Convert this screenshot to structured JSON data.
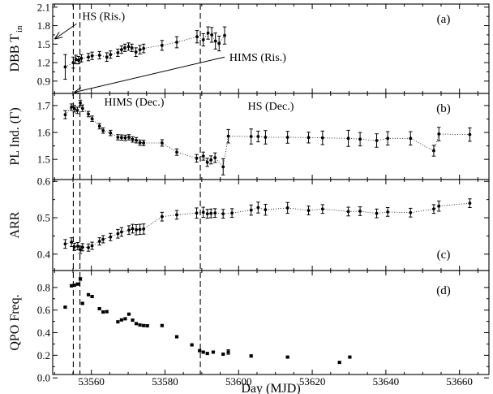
{
  "chart_data": {
    "type": "scatter",
    "xlabel": "Day (MJD)",
    "xlim": [
      53549.5,
      53668
    ],
    "xticks": [
      53560,
      53580,
      53600,
      53620,
      53640,
      53660
    ],
    "vlines": [
      53555.1,
      53556.9,
      53589.6
    ],
    "panels": [
      {
        "id": "a",
        "letter": "(a)",
        "ylabel_main": "DBB T",
        "ylabel_sub": "in",
        "ylim": [
          0.7,
          2.15
        ],
        "yticks": [
          "2.1",
          "1.8",
          "1.5",
          "1.2",
          "0.9"
        ],
        "ytick_values": [
          2.1,
          1.8,
          1.5,
          1.2,
          0.9
        ],
        "points": [
          {
            "x": 53552.9,
            "y": 1.13,
            "err": 0.2
          },
          {
            "x": 53555.1,
            "y": 1.2,
            "err": 0.09
          },
          {
            "x": 53555.8,
            "y": 1.25,
            "err": 0.07
          },
          {
            "x": 53556.5,
            "y": 1.24,
            "err": 0.06
          },
          {
            "x": 53557.3,
            "y": 1.27,
            "err": 0.06
          },
          {
            "x": 53559.2,
            "y": 1.29,
            "err": 0.06
          },
          {
            "x": 53560.2,
            "y": 1.31,
            "err": 0.06
          },
          {
            "x": 53562.2,
            "y": 1.32,
            "err": 0.06
          },
          {
            "x": 53564.2,
            "y": 1.29,
            "err": 0.07
          },
          {
            "x": 53565.2,
            "y": 1.33,
            "err": 0.06
          },
          {
            "x": 53567.2,
            "y": 1.36,
            "err": 0.06
          },
          {
            "x": 53568.2,
            "y": 1.41,
            "err": 0.06
          },
          {
            "x": 53569.1,
            "y": 1.44,
            "err": 0.06
          },
          {
            "x": 53570.1,
            "y": 1.46,
            "err": 0.06
          },
          {
            "x": 53571.0,
            "y": 1.44,
            "err": 0.06
          },
          {
            "x": 53572.1,
            "y": 1.37,
            "err": 0.07
          },
          {
            "x": 53573.2,
            "y": 1.41,
            "err": 0.07
          },
          {
            "x": 53574.2,
            "y": 1.43,
            "err": 0.07
          },
          {
            "x": 53579.2,
            "y": 1.48,
            "err": 0.08
          },
          {
            "x": 53583.2,
            "y": 1.53,
            "err": 0.09
          },
          {
            "x": 53588.7,
            "y": 1.62,
            "err": 0.1
          },
          {
            "x": 53590.4,
            "y": 1.57,
            "err": 0.1
          },
          {
            "x": 53591.7,
            "y": 1.68,
            "err": 0.1
          },
          {
            "x": 53592.7,
            "y": 1.65,
            "err": 0.12
          },
          {
            "x": 53593.7,
            "y": 1.55,
            "err": 0.13
          },
          {
            "x": 53594.7,
            "y": 1.51,
            "err": 0.12
          },
          {
            "x": 53596.2,
            "y": 1.64,
            "err": 0.14
          }
        ],
        "annotations": [
          {
            "text": "HS (Ris.)",
            "label_day": 53557.5,
            "label_value": 1.89,
            "arrow_from_day": 53556.0,
            "arrow_from_value": 1.83,
            "arrow_to_day": 53550.2,
            "arrow_to_value": 1.59
          },
          {
            "text": "HIMS (Ris.)",
            "label_day": 53597.5,
            "label_value": 1.23,
            "arrow_from_day": 53596.2,
            "arrow_from_value": 1.29,
            "arrow_to_day": 53555.5,
            "arrow_to_value": 0.72
          }
        ]
      },
      {
        "id": "b",
        "letter": "(b)",
        "ylabel_main": "PL Ind. (Γ)",
        "ylabel_sub": "",
        "ylim": [
          1.425,
          1.745
        ],
        "yticks": [
          "1.7",
          "1.6",
          "1.5"
        ],
        "ytick_values": [
          1.7,
          1.6,
          1.5
        ],
        "phase_labels": [
          {
            "text": "HIMS (Dec.)",
            "day": 53563.5,
            "value": 1.7
          },
          {
            "text": "HS (Dec.)",
            "day": 53602.5,
            "value": 1.685
          }
        ],
        "points": [
          {
            "x": 53552.9,
            "y": 1.666,
            "err": 0.015
          },
          {
            "x": 53554.6,
            "y": 1.694,
            "err": 0.012
          },
          {
            "x": 53555.4,
            "y": 1.688,
            "err": 0.012
          },
          {
            "x": 53556.2,
            "y": 1.682,
            "err": 0.012
          },
          {
            "x": 53557.0,
            "y": 1.71,
            "err": 0.01
          },
          {
            "x": 53557.6,
            "y": 1.69,
            "err": 0.012
          },
          {
            "x": 53559.2,
            "y": 1.668,
            "err": 0.01
          },
          {
            "x": 53560.2,
            "y": 1.651,
            "err": 0.01
          },
          {
            "x": 53562.2,
            "y": 1.623,
            "err": 0.01
          },
          {
            "x": 53563.2,
            "y": 1.607,
            "err": 0.01
          },
          {
            "x": 53565.2,
            "y": 1.598,
            "err": 0.01
          },
          {
            "x": 53567.2,
            "y": 1.582,
            "err": 0.01
          },
          {
            "x": 53568.2,
            "y": 1.581,
            "err": 0.01
          },
          {
            "x": 53569.2,
            "y": 1.58,
            "err": 0.01
          },
          {
            "x": 53570.2,
            "y": 1.582,
            "err": 0.01
          },
          {
            "x": 53571.2,
            "y": 1.574,
            "err": 0.01
          },
          {
            "x": 53572.2,
            "y": 1.571,
            "err": 0.01
          },
          {
            "x": 53573.2,
            "y": 1.562,
            "err": 0.01
          },
          {
            "x": 53574.2,
            "y": 1.561,
            "err": 0.01
          },
          {
            "x": 53579.2,
            "y": 1.561,
            "err": 0.012
          },
          {
            "x": 53583.2,
            "y": 1.527,
            "err": 0.012
          },
          {
            "x": 53588.6,
            "y": 1.504,
            "err": 0.014
          },
          {
            "x": 53590.4,
            "y": 1.512,
            "err": 0.015
          },
          {
            "x": 53591.5,
            "y": 1.489,
            "err": 0.015
          },
          {
            "x": 53592.5,
            "y": 1.498,
            "err": 0.015
          },
          {
            "x": 53593.6,
            "y": 1.506,
            "err": 0.018
          },
          {
            "x": 53595.8,
            "y": 1.472,
            "err": 0.03
          },
          {
            "x": 53597.2,
            "y": 1.586,
            "err": 0.025
          },
          {
            "x": 53603.4,
            "y": 1.585,
            "err": 0.028
          },
          {
            "x": 53605.3,
            "y": 1.585,
            "err": 0.02
          },
          {
            "x": 53607.3,
            "y": 1.582,
            "err": 0.025
          },
          {
            "x": 53613.3,
            "y": 1.582,
            "err": 0.022
          },
          {
            "x": 53619.0,
            "y": 1.581,
            "err": 0.02
          },
          {
            "x": 53622.8,
            "y": 1.58,
            "err": 0.025
          },
          {
            "x": 53629.8,
            "y": 1.578,
            "err": 0.03
          },
          {
            "x": 53633.0,
            "y": 1.575,
            "err": 0.025
          },
          {
            "x": 53637.5,
            "y": 1.57,
            "err": 0.025
          },
          {
            "x": 53640.5,
            "y": 1.578,
            "err": 0.025
          },
          {
            "x": 53646.7,
            "y": 1.578,
            "err": 0.025
          },
          {
            "x": 53653.0,
            "y": 1.532,
            "err": 0.02
          },
          {
            "x": 53654.4,
            "y": 1.594,
            "err": 0.025
          },
          {
            "x": 53662.8,
            "y": 1.592,
            "err": 0.025
          }
        ]
      },
      {
        "id": "c",
        "letter": "(c)",
        "ylabel_main": "ARR",
        "ylabel_sub": "",
        "ylim": [
          0.355,
          0.605
        ],
        "yticks": [
          "0.6",
          "0.5",
          "0.4"
        ],
        "ytick_values": [
          0.6,
          0.5,
          0.4
        ],
        "points": [
          {
            "x": 53552.9,
            "y": 0.428,
            "err": 0.012
          },
          {
            "x": 53554.6,
            "y": 0.433,
            "err": 0.012
          },
          {
            "x": 53555.4,
            "y": 0.42,
            "err": 0.01
          },
          {
            "x": 53556.3,
            "y": 0.422,
            "err": 0.01
          },
          {
            "x": 53557.0,
            "y": 0.412,
            "err": 0.01
          },
          {
            "x": 53557.6,
            "y": 0.419,
            "err": 0.01
          },
          {
            "x": 53559.2,
            "y": 0.418,
            "err": 0.01
          },
          {
            "x": 53560.2,
            "y": 0.423,
            "err": 0.01
          },
          {
            "x": 53562.2,
            "y": 0.435,
            "err": 0.01
          },
          {
            "x": 53563.2,
            "y": 0.441,
            "err": 0.01
          },
          {
            "x": 53565.2,
            "y": 0.447,
            "err": 0.01
          },
          {
            "x": 53567.2,
            "y": 0.456,
            "err": 0.012
          },
          {
            "x": 53568.2,
            "y": 0.461,
            "err": 0.012
          },
          {
            "x": 53570.2,
            "y": 0.466,
            "err": 0.012
          },
          {
            "x": 53571.2,
            "y": 0.47,
            "err": 0.012
          },
          {
            "x": 53572.2,
            "y": 0.467,
            "err": 0.014
          },
          {
            "x": 53573.2,
            "y": 0.468,
            "err": 0.014
          },
          {
            "x": 53574.2,
            "y": 0.469,
            "err": 0.014
          },
          {
            "x": 53579.2,
            "y": 0.503,
            "err": 0.012
          },
          {
            "x": 53583.2,
            "y": 0.508,
            "err": 0.012
          },
          {
            "x": 53588.6,
            "y": 0.513,
            "err": 0.014
          },
          {
            "x": 53590.4,
            "y": 0.515,
            "err": 0.014
          },
          {
            "x": 53591.5,
            "y": 0.511,
            "err": 0.012
          },
          {
            "x": 53592.5,
            "y": 0.512,
            "err": 0.012
          },
          {
            "x": 53593.6,
            "y": 0.513,
            "err": 0.012
          },
          {
            "x": 53595.8,
            "y": 0.511,
            "err": 0.012
          },
          {
            "x": 53598.2,
            "y": 0.513,
            "err": 0.012
          },
          {
            "x": 53603.4,
            "y": 0.521,
            "err": 0.014
          },
          {
            "x": 53605.3,
            "y": 0.528,
            "err": 0.015
          },
          {
            "x": 53607.3,
            "y": 0.522,
            "err": 0.015
          },
          {
            "x": 53613.3,
            "y": 0.527,
            "err": 0.015
          },
          {
            "x": 53619.0,
            "y": 0.52,
            "err": 0.012
          },
          {
            "x": 53622.8,
            "y": 0.524,
            "err": 0.012
          },
          {
            "x": 53629.8,
            "y": 0.517,
            "err": 0.012
          },
          {
            "x": 53633.0,
            "y": 0.518,
            "err": 0.012
          },
          {
            "x": 53637.5,
            "y": 0.512,
            "err": 0.012
          },
          {
            "x": 53640.5,
            "y": 0.516,
            "err": 0.012
          },
          {
            "x": 53646.7,
            "y": 0.514,
            "err": 0.012
          },
          {
            "x": 53653.0,
            "y": 0.524,
            "err": 0.012
          },
          {
            "x": 53654.4,
            "y": 0.532,
            "err": 0.014
          },
          {
            "x": 53662.8,
            "y": 0.54,
            "err": 0.012
          }
        ]
      },
      {
        "id": "d",
        "letter": "(d)",
        "ylabel_main": "QPO Freq.",
        "ylabel_sub": "",
        "ylim": [
          0.03,
          0.95
        ],
        "yticks": [
          "0.8",
          "0.6",
          "0.4",
          "0.2",
          "0.0"
        ],
        "ytick_values": [
          0.8,
          0.6,
          0.4,
          0.2,
          0.0
        ],
        "points": [
          {
            "x": 53552.9,
            "y": 0.626,
            "err": 0.006
          },
          {
            "x": 53554.6,
            "y": 0.815,
            "err": 0.01
          },
          {
            "x": 53555.4,
            "y": 0.82,
            "err": 0.01
          },
          {
            "x": 53556.3,
            "y": 0.83,
            "err": 0.01
          },
          {
            "x": 53557.0,
            "y": 0.875,
            "err": 0.012
          },
          {
            "x": 53557.6,
            "y": 0.659,
            "err": 0.008
          },
          {
            "x": 53559.2,
            "y": 0.736,
            "err": 0.008
          },
          {
            "x": 53560.2,
            "y": 0.72,
            "err": 0.008
          },
          {
            "x": 53562.2,
            "y": 0.612,
            "err": 0.008
          },
          {
            "x": 53563.2,
            "y": 0.583,
            "err": 0.008
          },
          {
            "x": 53564.2,
            "y": 0.586,
            "err": 0.008
          },
          {
            "x": 53567.2,
            "y": 0.496,
            "err": 0.008
          },
          {
            "x": 53568.2,
            "y": 0.513,
            "err": 0.008
          },
          {
            "x": 53569.2,
            "y": 0.523,
            "err": 0.008
          },
          {
            "x": 53570.2,
            "y": 0.564,
            "err": 0.008
          },
          {
            "x": 53571.2,
            "y": 0.511,
            "err": 0.008
          },
          {
            "x": 53572.2,
            "y": 0.48,
            "err": 0.008
          },
          {
            "x": 53573.2,
            "y": 0.468,
            "err": 0.008
          },
          {
            "x": 53574.2,
            "y": 0.463,
            "err": 0.008
          },
          {
            "x": 53575.2,
            "y": 0.461,
            "err": 0.008
          },
          {
            "x": 53579.2,
            "y": 0.463,
            "err": 0.008
          },
          {
            "x": 53583.2,
            "y": 0.364,
            "err": 0.008
          },
          {
            "x": 53587.3,
            "y": 0.292,
            "err": 0.008
          },
          {
            "x": 53589.4,
            "y": 0.241,
            "err": 0.008
          },
          {
            "x": 53590.4,
            "y": 0.228,
            "err": 0.008
          },
          {
            "x": 53591.5,
            "y": 0.216,
            "err": 0.008
          },
          {
            "x": 53593.1,
            "y": 0.228,
            "err": 0.008
          },
          {
            "x": 53595.8,
            "y": 0.21,
            "err": 0.008
          },
          {
            "x": 53597.2,
            "y": 0.229,
            "err": 0.02
          },
          {
            "x": 53603.4,
            "y": 0.194,
            "err": 0.01
          },
          {
            "x": 53613.3,
            "y": 0.184,
            "err": 0.008
          },
          {
            "x": 53627.4,
            "y": 0.137,
            "err": 0.008
          },
          {
            "x": 53630.2,
            "y": 0.184,
            "err": 0.008
          }
        ]
      }
    ]
  }
}
